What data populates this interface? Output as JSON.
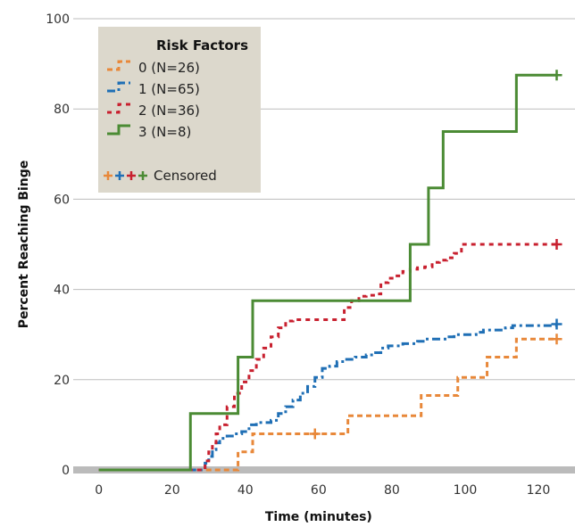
{
  "chart_data": {
    "type": "line",
    "xlabel": "Time (minutes)",
    "ylabel": "Percent Reaching Binge",
    "xlim": [
      -7,
      130
    ],
    "ylim": [
      0,
      100
    ],
    "xticks": [
      0,
      20,
      40,
      60,
      80,
      100,
      120
    ],
    "yticks": [
      0,
      20,
      40,
      60,
      80,
      100
    ],
    "grid": "horizontal",
    "legend": {
      "title": "Risk Factors",
      "placement": "top-left",
      "censored_label": "Censored"
    },
    "series": [
      {
        "name": "0 (N=26)",
        "color": "#e8883a",
        "dash": "orange-dash",
        "x": [
          0,
          37,
          38,
          41,
          42,
          67,
          68,
          87,
          88,
          97,
          98,
          105,
          106,
          113,
          114,
          125
        ],
        "y": [
          0,
          0,
          4,
          4,
          8,
          8,
          12,
          12,
          16.5,
          16.5,
          20.5,
          20.5,
          25,
          25,
          29,
          29
        ],
        "censored": [
          [
            59,
            8
          ],
          [
            125,
            29
          ]
        ]
      },
      {
        "name": "1 (N=65)",
        "color": "#1f6fb5",
        "dash": "blue-dashdot",
        "x": [
          0,
          28,
          29,
          30,
          31,
          32,
          33,
          35,
          37,
          39,
          41,
          43,
          45,
          47,
          49,
          51,
          53,
          55,
          57,
          59,
          61,
          63,
          65,
          67,
          70,
          73,
          75,
          77,
          79,
          81,
          83,
          85,
          87,
          89,
          91,
          93,
          95,
          97,
          99,
          103,
          105,
          107,
          111,
          113,
          115,
          125
        ],
        "y": [
          0,
          0,
          1.5,
          3,
          4.5,
          6,
          7,
          7.5,
          8,
          8.5,
          10,
          10.5,
          10.5,
          11,
          12.5,
          14,
          15.5,
          17,
          18.5,
          20.5,
          22.5,
          23,
          24,
          24.5,
          25,
          25.5,
          26,
          27,
          27.5,
          27.5,
          28,
          28,
          28.5,
          29,
          29,
          29,
          29.5,
          30,
          30,
          30.5,
          31,
          31,
          31.5,
          32,
          32,
          32
        ],
        "censored": [
          [
            125,
            32.3
          ]
        ]
      },
      {
        "name": "2 (N=36)",
        "color": "#c8202f",
        "dash": "red-dash",
        "x": [
          0,
          28,
          29,
          30,
          31,
          32,
          33,
          35,
          37,
          39,
          41,
          43,
          45,
          47,
          49,
          51,
          53,
          67,
          69,
          71,
          73,
          75,
          77,
          79,
          81,
          83,
          85,
          87,
          89,
          91,
          93,
          95,
          97,
          99,
          125
        ],
        "y": [
          0,
          0,
          2,
          4,
          6,
          8,
          10,
          14,
          17,
          19.5,
          22,
          24.5,
          27,
          29.5,
          31.5,
          33,
          33.3,
          36,
          37.5,
          38.5,
          38.7,
          39,
          41.5,
          42.5,
          43,
          44,
          44.5,
          44.8,
          45,
          46,
          46.5,
          47,
          48,
          50,
          50
        ],
        "censored": [
          [
            125,
            50
          ]
        ]
      },
      {
        "name": "3 (N=8)",
        "color": "#4b8b34",
        "dash": "solid",
        "x": [
          0,
          25,
          38,
          42,
          85,
          90,
          94,
          114,
          125
        ],
        "y": [
          0,
          12.5,
          25,
          37.5,
          50,
          62.5,
          75,
          87.5,
          87.5
        ],
        "censored": [
          [
            125,
            87.5
          ]
        ]
      }
    ]
  }
}
